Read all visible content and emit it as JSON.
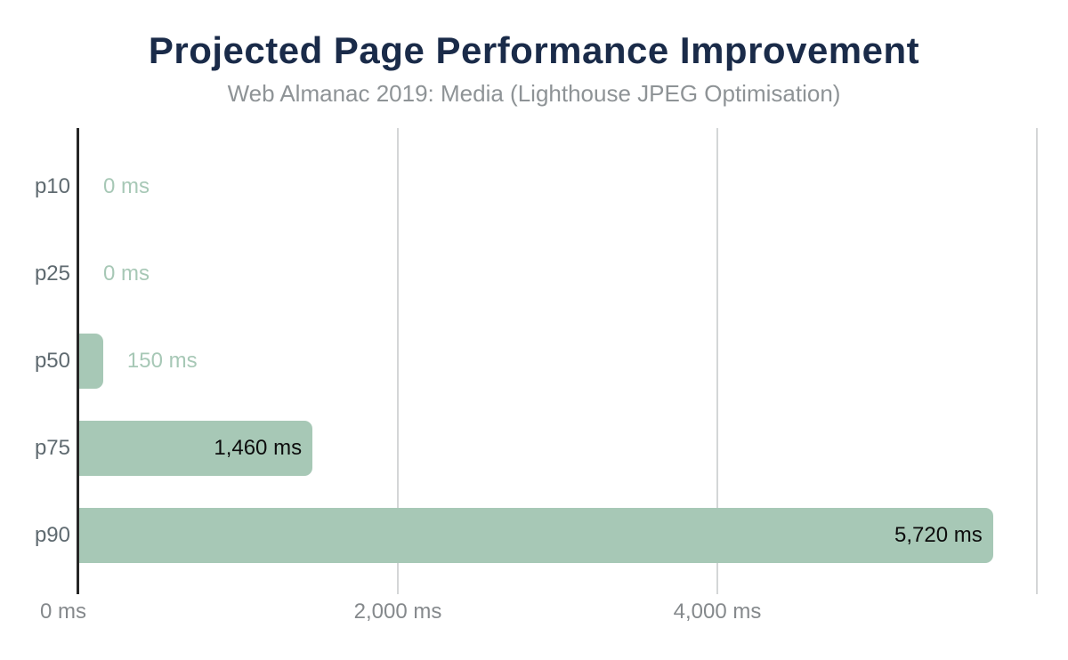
{
  "chart_data": {
    "type": "bar",
    "orientation": "horizontal",
    "title": "Projected Page Performance Improvement",
    "subtitle": "Web Almanac 2019: Media (Lighthouse JPEG Optimisation)",
    "categories": [
      "p10",
      "p25",
      "p50",
      "p75",
      "p90"
    ],
    "values": [
      0,
      0,
      150,
      1460,
      5720
    ],
    "value_labels": [
      "0 ms",
      "0 ms",
      "150 ms",
      "1,460 ms",
      "5,720 ms"
    ],
    "unit": "ms",
    "xlim": [
      0,
      6200
    ],
    "x_ticks": [
      {
        "value": 0,
        "label": "0 ms"
      },
      {
        "value": 2000,
        "label": "2,000 ms"
      },
      {
        "value": 4000,
        "label": "4,000 ms"
      }
    ],
    "gridline_values": [
      2000,
      4000,
      6000
    ],
    "grid": "vertical",
    "legend": "none",
    "colors": {
      "bar": "#a7c8b6",
      "value_label_outside": "#a7c8b6",
      "value_label_inside": "#0d0d0d",
      "category_label": "#5f6a70",
      "x_tick_label": "#85898c",
      "axis_line": "#262626",
      "gridline": "#d4d6d7",
      "title": "#1a2b49",
      "subtitle": "#8e9396",
      "background": "#ffffff"
    }
  }
}
